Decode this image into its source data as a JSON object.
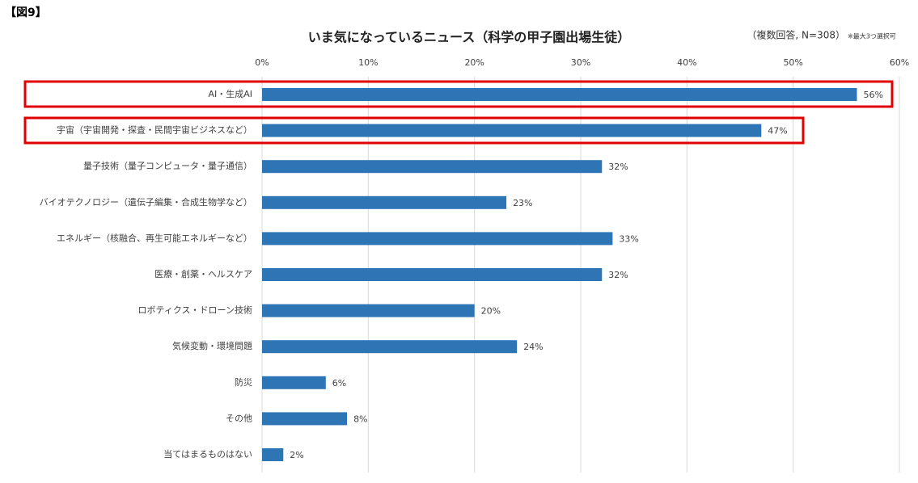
{
  "figure_label": "【図9】",
  "chart_data": {
    "type": "barh",
    "title": "いま気になっているニュース（科学の甲子園出場生徒）",
    "note": "（複数回答, N=308）",
    "note_small": "※最大3つ選択可",
    "categories": [
      "AI・生成AI",
      "宇宙（宇宙開発・探査・民間宇宙ビジネスなど）",
      "量子技術（量子コンピュータ・量子通信）",
      "バイオテクノロジー（遺伝子編集・合成生物学など）",
      "エネルギー（核融合、再生可能エネルギーなど）",
      "医療・創薬・ヘルスケア",
      "ロボティクス・ドローン技術",
      "気候変動・環境問題",
      "防災",
      "その他",
      "当てはまるものはない"
    ],
    "values": [
      56,
      47,
      32,
      23,
      33,
      32,
      20,
      24,
      6,
      8,
      2
    ],
    "value_labels": [
      "56%",
      "47%",
      "32%",
      "23%",
      "33%",
      "32%",
      "20%",
      "24%",
      "6%",
      "8%",
      "2%"
    ],
    "color": "#2e75b6",
    "xlim": [
      0,
      60
    ],
    "xticks": [
      {
        "value": 0,
        "label": "0%"
      },
      {
        "value": 10,
        "label": "10%"
      },
      {
        "value": 20,
        "label": "20%"
      },
      {
        "value": 30,
        "label": "30%"
      },
      {
        "value": 40,
        "label": "40%"
      },
      {
        "value": 50,
        "label": "50%"
      },
      {
        "value": 60,
        "label": "60%"
      }
    ],
    "grid": true
  }
}
